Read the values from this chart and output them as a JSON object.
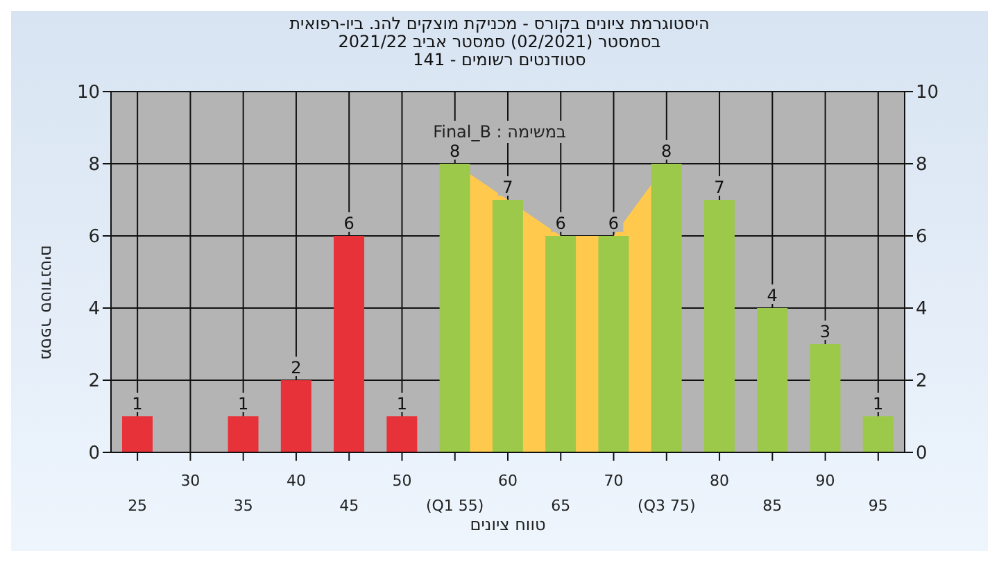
{
  "chart_data": {
    "type": "bar",
    "title": "היסטוגרמת ציונים בקורס - מכניקת מוצקים להנ. ביו-רפואית",
    "subtitle": "בסמסטר  (02/2021)  סמסטר אביב 2021/22",
    "annotations": [
      "סטודנטים רשומים - 141",
      "במשימה : Final_B"
    ],
    "xlabel": "טווח ציונים",
    "ylabel": "מספר סטודנטים",
    "categories": [
      "25",
      "30",
      "35",
      "40",
      "45",
      "50",
      "(Q1 55)",
      "60",
      "65",
      "70",
      "(Q3 75)",
      "80",
      "85",
      "90",
      "95"
    ],
    "series": [
      {
        "type": "area",
        "color": "#ffc94d",
        "values": [
          null,
          null,
          null,
          null,
          null,
          null,
          8,
          7,
          6,
          6,
          8,
          null,
          null,
          null,
          null
        ]
      },
      {
        "colors": [
          "#e8323a",
          "#e8323a",
          "#e8323a",
          "#e8323a",
          "#e8323a",
          "#e8323a",
          "#9dc94a",
          "#9dc94a",
          "#9dc94a",
          "#9dc94a",
          "#9dc94a",
          "#9dc94a",
          "#9dc94a",
          "#9dc94a",
          "#9dc94a"
        ],
        "values": [
          1,
          0,
          1,
          2,
          6,
          1,
          8,
          7,
          6,
          6,
          8,
          7,
          4,
          3,
          1
        ],
        "value_labels": [
          "1",
          null,
          "1",
          "2",
          "6",
          "1",
          "8",
          "7",
          "6",
          "6",
          "8",
          "7",
          "4",
          "3",
          "1"
        ]
      }
    ],
    "ylim": [
      0,
      10
    ],
    "yticks": [
      0,
      2,
      4,
      6,
      8,
      10
    ],
    "y2lim": [
      0,
      10
    ],
    "y2ticks": [
      0,
      2,
      4,
      6,
      8,
      10
    ],
    "grid": true,
    "legend": false
  }
}
